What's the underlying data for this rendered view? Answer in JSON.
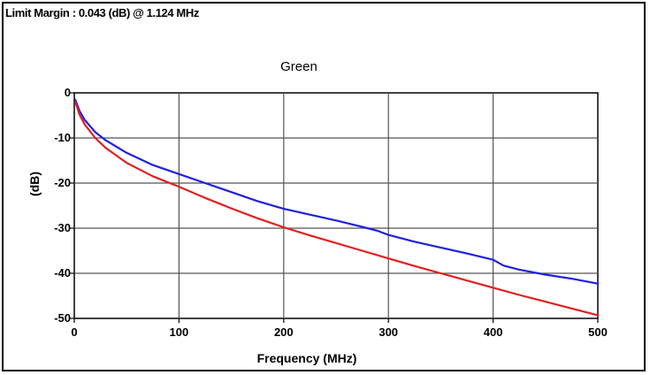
{
  "header": {
    "limit_margin": "Limit Margin : 0.043 (dB) @ 1.124 MHz"
  },
  "chart_data": {
    "type": "line",
    "title": "Green",
    "xlabel": "Frequency (MHz)",
    "ylabel": "(dB)",
    "xlim": [
      0,
      500
    ],
    "ylim": [
      -50,
      0
    ],
    "xticks": [
      0,
      100,
      200,
      300,
      400,
      500
    ],
    "xtick_labels": [
      "0",
      "100",
      "200",
      "300",
      "400",
      "500"
    ],
    "yticks": [
      0,
      -10,
      -20,
      -30,
      -40,
      -50
    ],
    "ytick_labels": [
      "0",
      "-10",
      "-20",
      "-30",
      "-40",
      "-50"
    ],
    "grid": true,
    "series": [
      {
        "color": "#2020e0",
        "x": [
          1,
          5,
          10,
          20,
          30,
          50,
          75,
          100,
          125,
          150,
          175,
          200,
          225,
          250,
          275,
          290,
          300,
          325,
          350,
          375,
          400,
          410,
          425,
          450,
          475,
          500
        ],
        "y": [
          -1.5,
          -4.0,
          -6.0,
          -8.7,
          -10.5,
          -13.3,
          -16.0,
          -18.0,
          -20.0,
          -22.0,
          -24.0,
          -25.7,
          -27.0,
          -28.3,
          -29.7,
          -30.6,
          -31.5,
          -33.0,
          -34.3,
          -35.6,
          -37.0,
          -38.3,
          -39.2,
          -40.3,
          -41.2,
          -42.3
        ]
      },
      {
        "color": "#e02020",
        "x": [
          1,
          5,
          10,
          20,
          30,
          50,
          75,
          100,
          125,
          150,
          175,
          200,
          225,
          250,
          275,
          300,
          325,
          350,
          375,
          400,
          425,
          450,
          475,
          500
        ],
        "y": [
          -2.0,
          -4.8,
          -7.0,
          -10.0,
          -12.2,
          -15.5,
          -18.5,
          -20.8,
          -23.3,
          -25.6,
          -27.8,
          -29.8,
          -31.6,
          -33.3,
          -35.0,
          -36.7,
          -38.4,
          -40.0,
          -41.6,
          -43.2,
          -44.8,
          -46.3,
          -47.8,
          -49.3
        ]
      }
    ]
  }
}
